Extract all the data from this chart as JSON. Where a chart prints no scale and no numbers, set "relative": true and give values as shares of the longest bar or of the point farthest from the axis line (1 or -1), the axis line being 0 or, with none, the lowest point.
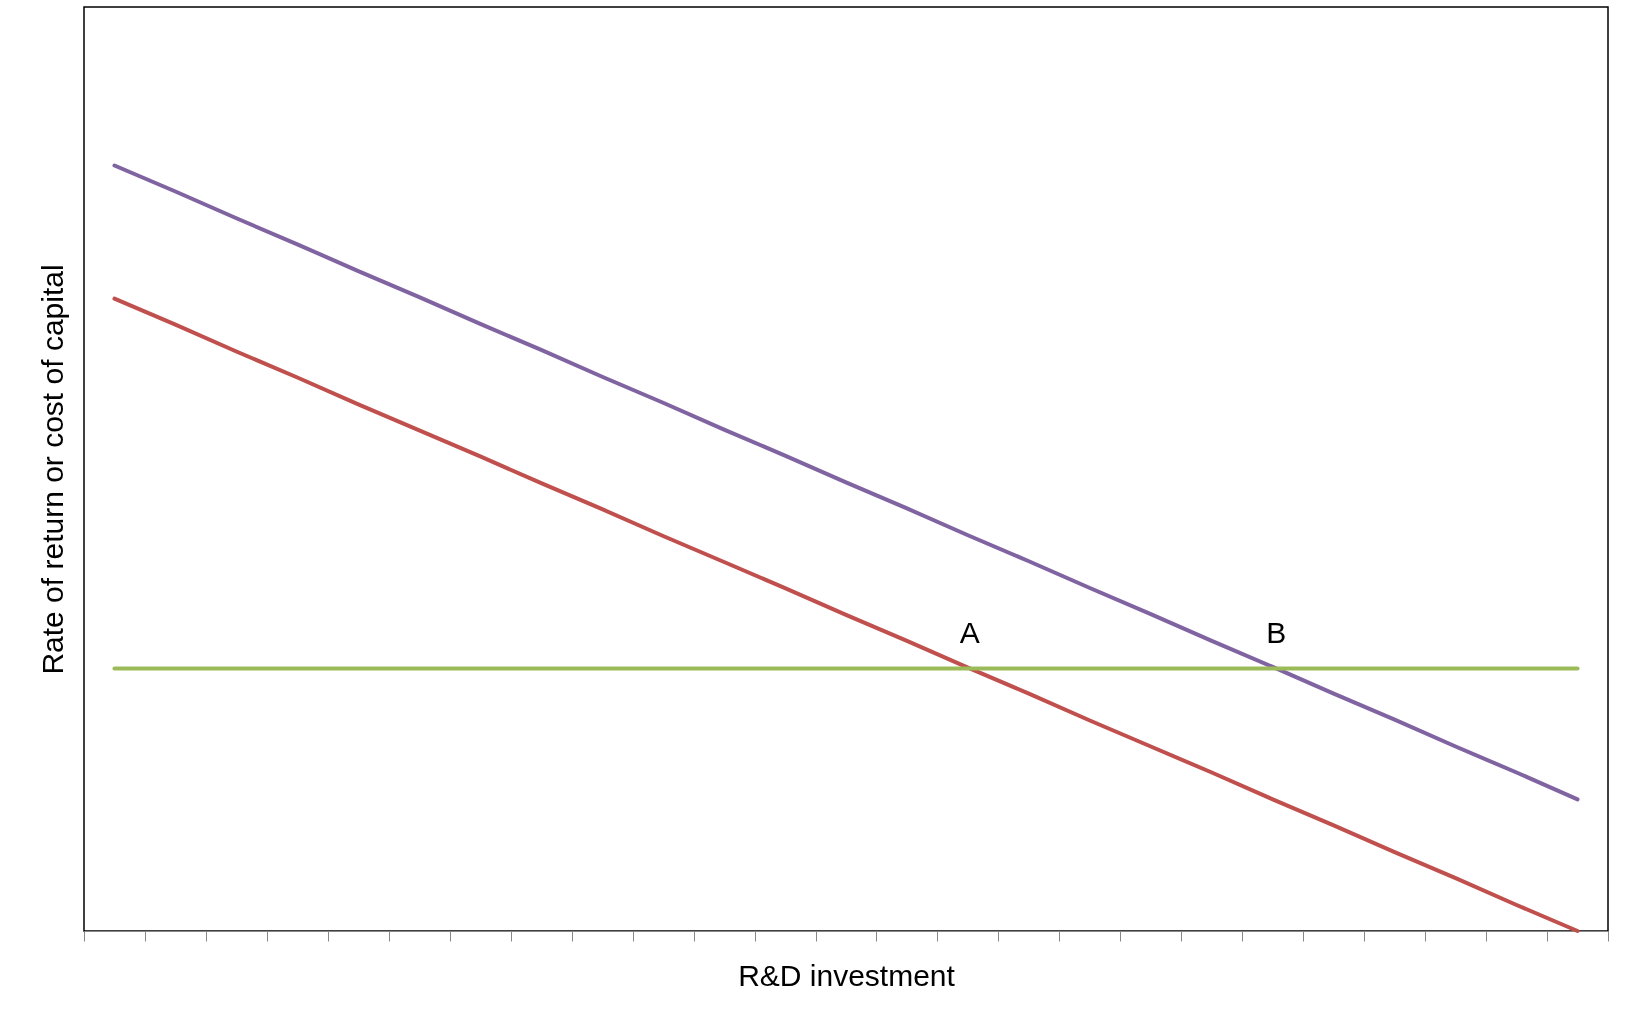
{
  "chart_data": {
    "type": "line",
    "xlabel": "R&D investment",
    "ylabel": "Rate of return or cost of capital",
    "relative": true,
    "grid": false,
    "categories": [
      null,
      null,
      null,
      null,
      null,
      null,
      null,
      null,
      null,
      null,
      null,
      null,
      null,
      null,
      null,
      null,
      null,
      null,
      null,
      null,
      null,
      null,
      null,
      null,
      null
    ],
    "series": [
      {
        "color": "#c0504d",
        "values": [
          0.826,
          0.792,
          0.757,
          0.723,
          0.688,
          0.654,
          0.62,
          0.585,
          0.551,
          0.516,
          0.482,
          0.448,
          0.413,
          0.379,
          0.344,
          0.31,
          0.275,
          0.241,
          0.207,
          0.172,
          0.138,
          0.103,
          0.069,
          0.034,
          0
        ]
      },
      {
        "color": "#8064a2",
        "values": [
          1,
          0.966,
          0.931,
          0.897,
          0.862,
          0.828,
          0.793,
          0.759,
          0.724,
          0.69,
          0.655,
          0.621,
          0.586,
          0.552,
          0.517,
          0.483,
          0.448,
          0.414,
          0.379,
          0.345,
          0.31,
          0.276,
          0.241,
          0.207,
          0.172
        ]
      },
      {
        "color": "#9bbb59",
        "values": [
          0.343,
          0.343,
          0.343,
          0.343,
          0.343,
          0.343,
          0.343,
          0.343,
          0.343,
          0.343,
          0.343,
          0.343,
          0.343,
          0.343,
          0.343,
          0.343,
          0.343,
          0.343,
          0.343,
          0.343,
          0.343,
          0.343,
          0.343,
          0.343,
          0.343
        ]
      }
    ],
    "annotations": [
      "A",
      "B"
    ]
  }
}
